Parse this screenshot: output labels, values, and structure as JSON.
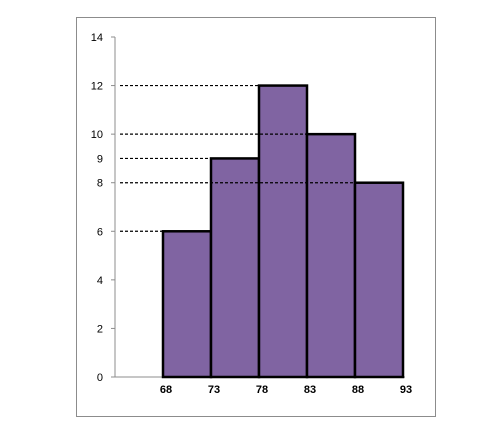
{
  "chart_data": {
    "type": "bar",
    "title": "",
    "xlabel": "",
    "ylabel": "",
    "bin_edges": [
      68,
      73,
      78,
      83,
      88,
      93
    ],
    "values": [
      6,
      9,
      12,
      10,
      8
    ],
    "ylim": [
      0,
      14
    ],
    "y_ticks": [
      0,
      2,
      4,
      6,
      8,
      10,
      12,
      14
    ],
    "y_extra_labels": [
      9
    ],
    "reference_lines": [
      6,
      9,
      12,
      10,
      8
    ],
    "grid": false,
    "legend": "none",
    "colors": {
      "bar_fill": "#8064a2",
      "bar_stroke": "#000000",
      "axis": "#8c8c8c",
      "reference_line": "#000000"
    }
  }
}
